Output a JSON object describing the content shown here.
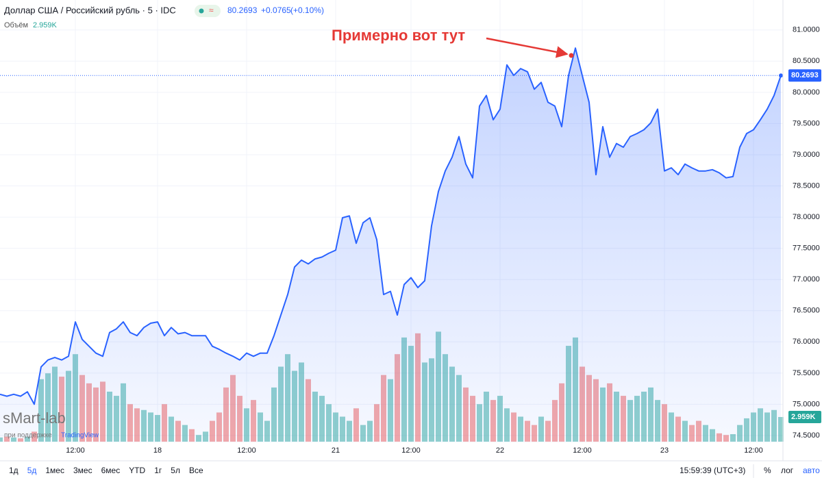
{
  "chart_data": {
    "type": "area",
    "title": "Доллар США / Российский рубль · 5 · IDC",
    "change": "+0.0765",
    "change_pct": "(+0.10%)",
    "annotation": "Примерно вот тут",
    "color": "#2962ff",
    "categories": [
      null,
      null,
      null,
      null,
      null,
      null,
      null,
      null,
      null,
      null,
      null,
      "12:00",
      null,
      null,
      null,
      null,
      null,
      null,
      null,
      null,
      null,
      null,
      null,
      "18",
      null,
      null,
      null,
      null,
      null,
      null,
      null,
      null,
      null,
      null,
      null,
      null,
      "12:00",
      null,
      null,
      null,
      null,
      null,
      null,
      null,
      null,
      null,
      null,
      null,
      null,
      "21",
      null,
      null,
      null,
      null,
      null,
      null,
      null,
      null,
      null,
      null,
      "12:00",
      null,
      null,
      null,
      null,
      null,
      null,
      null,
      null,
      null,
      null,
      null,
      null,
      "22",
      null,
      null,
      null,
      null,
      null,
      null,
      null,
      null,
      null,
      null,
      null,
      "12:00",
      null,
      null,
      null,
      null,
      null,
      null,
      null,
      null,
      null,
      null,
      null,
      "23",
      null,
      null,
      null,
      null,
      null,
      null,
      null,
      null,
      null,
      null,
      null,
      null,
      "12:00",
      null,
      null,
      null,
      null
    ],
    "values": [
      75.16,
      75.13,
      75.16,
      75.13,
      75.2,
      75.0,
      75.6,
      75.71,
      75.75,
      75.71,
      75.77,
      76.32,
      76.04,
      75.93,
      75.82,
      75.77,
      76.15,
      76.21,
      76.32,
      76.15,
      76.1,
      76.23,
      76.3,
      76.32,
      76.1,
      76.23,
      76.13,
      76.15,
      76.1,
      76.1,
      76.1,
      75.93,
      75.88,
      75.82,
      75.77,
      75.71,
      75.82,
      75.77,
      75.82,
      75.82,
      76.1,
      76.43,
      76.76,
      77.2,
      77.31,
      77.25,
      77.33,
      77.36,
      77.42,
      77.47,
      77.99,
      78.02,
      77.58,
      77.91,
      77.99,
      77.64,
      76.76,
      76.81,
      76.43,
      76.92,
      77.03,
      76.87,
      76.98,
      77.86,
      78.41,
      78.74,
      78.96,
      79.29,
      78.85,
      78.63,
      79.78,
      79.95,
      79.56,
      79.73,
      80.44,
      80.27,
      80.38,
      80.33,
      80.05,
      80.16,
      79.84,
      79.78,
      79.45,
      80.27,
      80.71,
      80.27,
      79.84,
      78.68,
      79.45,
      78.96,
      79.18,
      79.12,
      79.29,
      79.34,
      79.4,
      79.51,
      79.73,
      78.74,
      78.79,
      78.68,
      78.85,
      78.79,
      78.74,
      78.74,
      78.76,
      78.71,
      78.63,
      78.65,
      79.12,
      79.34,
      79.4,
      79.56,
      79.73,
      79.95,
      80.2693
    ],
    "ylim": [
      74.39,
      81.48
    ],
    "yticks": [
      {
        "value": 74.5,
        "label": "74.5000"
      },
      {
        "value": 75,
        "label": "75.0000"
      },
      {
        "value": 75.5,
        "label": "75.5000"
      },
      {
        "value": 76,
        "label": "76.0000"
      },
      {
        "value": 76.5,
        "label": "76.5000"
      },
      {
        "value": 77,
        "label": "77.0000"
      },
      {
        "value": 77.5,
        "label": "77.5000"
      },
      {
        "value": 78,
        "label": "78.0000"
      },
      {
        "value": 78.5,
        "label": "78.5000"
      },
      {
        "value": 79,
        "label": "79.0000"
      },
      {
        "value": 79.5,
        "label": "79.5000"
      },
      {
        "value": 80,
        "label": "80.0000"
      },
      {
        "value": 80.5,
        "label": "80.5000"
      },
      {
        "value": 81,
        "label": "81.0000"
      }
    ],
    "grid": true,
    "volume": {
      "name": "Объём",
      "value_label": "2.959K",
      "up_color": "rgba(38,166,154,0.5)",
      "down_color": "rgba(239,83,80,0.5)",
      "y2lim": [
        0,
        53
      ],
      "values": [
        0.5,
        0.6,
        0.5,
        0.4,
        0.6,
        1.2,
        7.5,
        8.2,
        9.0,
        7.8,
        8.5,
        10.5,
        8.0,
        7.0,
        6.5,
        7.2,
        6.0,
        5.5,
        7.0,
        4.5,
        4.0,
        3.8,
        3.5,
        3.2,
        4.5,
        3.0,
        2.5,
        2.0,
        1.5,
        0.8,
        1.2,
        2.5,
        3.5,
        6.5,
        8.0,
        5.5,
        4.0,
        5.0,
        3.5,
        2.5,
        6.5,
        9.0,
        10.5,
        8.5,
        9.5,
        7.5,
        6.0,
        5.5,
        4.5,
        3.5,
        3.0,
        2.5,
        4.0,
        2.0,
        2.5,
        4.5,
        8.0,
        7.5,
        10.5,
        12.5,
        11.5,
        13.0,
        9.5,
        10.0,
        13.2,
        10.5,
        9.0,
        8.0,
        6.5,
        5.5,
        4.5,
        6.0,
        5.0,
        5.5,
        4.0,
        3.5,
        3.0,
        2.5,
        2.0,
        3.0,
        2.5,
        5.0,
        7.0,
        11.5,
        12.5,
        9.0,
        8.0,
        7.5,
        6.5,
        7.0,
        6.0,
        5.5,
        5.0,
        5.5,
        6.0,
        6.5,
        5.0,
        4.5,
        3.5,
        3.0,
        2.5,
        2.0,
        2.5,
        2.0,
        1.5,
        1.0,
        0.8,
        0.9,
        2.0,
        2.8,
        3.5,
        4.0,
        3.5,
        3.8,
        2.959
      ]
    }
  },
  "toolbar": {
    "ranges": [
      "1д",
      "5д",
      "1мес",
      "3мес",
      "6мес",
      "YTD",
      "1г",
      "5л",
      "Все"
    ],
    "active_range": 1,
    "clock": "15:59:39 (UTC+3)",
    "options": [
      "%",
      "лог",
      "авто"
    ]
  },
  "watermark": {
    "name": "sMart-lab",
    "support": "при поддержке",
    "brand": "TradingView"
  }
}
